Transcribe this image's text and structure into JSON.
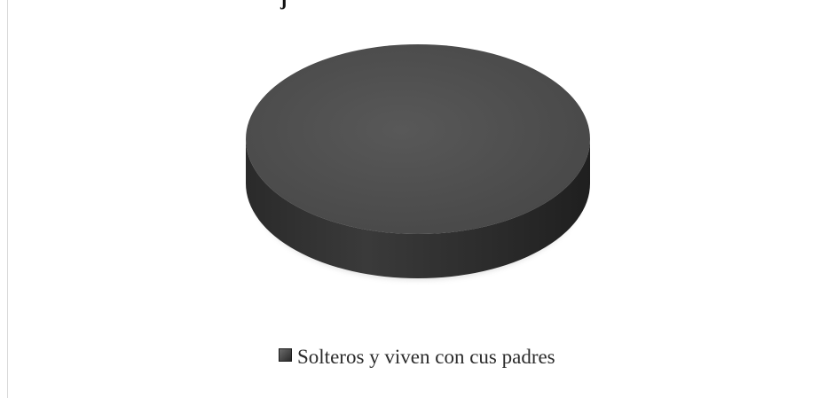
{
  "chart_data": {
    "type": "pie",
    "title_fragment": "j",
    "categories": [
      "Solteros y viven con cus padres"
    ],
    "values": [
      100
    ],
    "legend": {
      "position": "bottom",
      "entries": [
        "Solteros y viven con cus padres"
      ]
    },
    "colors": {
      "top": "#4f4f4f",
      "side": "#2f2f2f",
      "swatch": "#555555"
    },
    "three_d": true
  }
}
